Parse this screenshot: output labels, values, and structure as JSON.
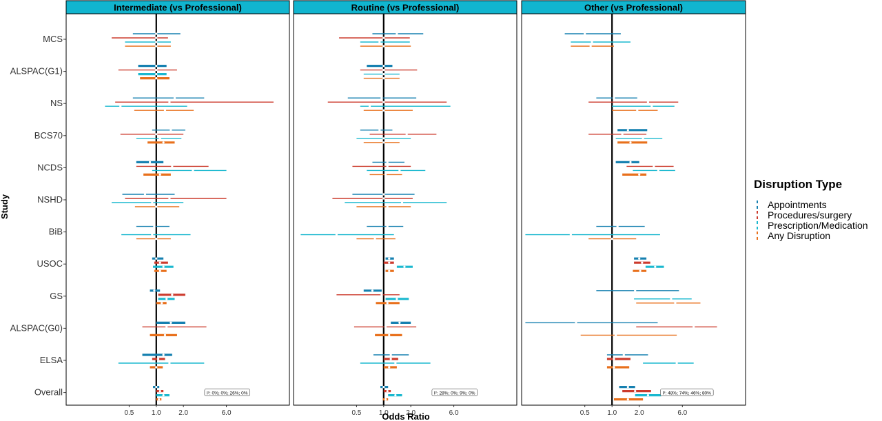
{
  "chart_data": {
    "type": "forest",
    "xlabel": "Odds Ratio",
    "ylabel": "Study",
    "x_scale": "log",
    "xlim": [
      0.1,
      30
    ],
    "xticks": [
      0.5,
      1.0,
      2.0,
      6.0
    ],
    "xtick_labels": [
      "0.5",
      "1.0",
      "2.0",
      "6.0"
    ],
    "reference_line": 1.0,
    "studies": [
      "MCS",
      "ALSPAC(G1)",
      "NS",
      "BCS70",
      "NCDS",
      "NSHD",
      "BiB",
      "USOC",
      "GS",
      "ALSPAC(G0)",
      "ELSA",
      "Overall"
    ],
    "legend": {
      "title": "Disruption Type",
      "position": "right",
      "entries": [
        {
          "name": "Appointments",
          "color": "#1680b0"
        },
        {
          "name": "Procedures/surgery",
          "color": "#cc3a2c"
        },
        {
          "name": "Prescription/Medication",
          "color": "#1ab8cf"
        },
        {
          "name": "Any Disruption",
          "color": "#e8701c"
        }
      ]
    },
    "panels": [
      {
        "title": "Intermediate (vs Professional)",
        "overall_note": "I²: 0%; 0%; 26%; 0%",
        "estimates": {
          "MCS": [
            [
              1.0,
              0.55,
              1.85
            ],
            [
              1.0,
              0.32,
              1.35
            ],
            [
              1.0,
              0.45,
              1.45
            ],
            [
              1.0,
              0.45,
              1.45
            ]
          ],
          "ALSPAC(G1)": [
            [
              1.0,
              0.63,
              1.3
            ],
            [
              1.0,
              0.38,
              1.7
            ],
            [
              1.0,
              0.63,
              1.3
            ],
            [
              1.0,
              0.66,
              1.4
            ]
          ],
          "NS": [
            [
              1.6,
              0.55,
              3.4
            ],
            [
              1.4,
              0.35,
              20.0
            ],
            [
              0.4,
              0.27,
              2.2
            ],
            [
              1.25,
              0.57,
              2.6
            ]
          ],
          "BCS70": [
            [
              1.45,
              0.9,
              2.1
            ],
            [
              1.0,
              0.4,
              2.0
            ],
            [
              1.1,
              0.6,
              1.9
            ],
            [
              1.2,
              0.8,
              1.6
            ]
          ],
          "NCDS": [
            [
              0.85,
              0.6,
              1.2
            ],
            [
              1.5,
              0.6,
              3.8
            ],
            [
              2.55,
              0.9,
              6.0
            ],
            [
              1.1,
              0.72,
              1.45
            ]
          ],
          "NSHD": [
            [
              0.75,
              0.42,
              1.6
            ],
            [
              1.4,
              0.45,
              6.0
            ],
            [
              0.9,
              0.32,
              2.0
            ],
            [
              1.0,
              0.58,
              1.8
            ]
          ],
          "BiB": [
            [
              0.95,
              0.6,
              1.4
            ],
            [
              null,
              null,
              null
            ],
            [
              0.9,
              0.41,
              2.4
            ],
            [
              1.0,
              0.6,
              1.45
            ]
          ],
          "USOC": [
            [
              1.0,
              0.9,
              1.2
            ],
            [
              1.1,
              0.95,
              1.35
            ],
            [
              1.2,
              0.92,
              1.55
            ],
            [
              1.1,
              0.95,
              1.3
            ]
          ],
          "GS": [
            [
              0.95,
              0.85,
              1.1
            ],
            [
              1.5,
              1.05,
              2.1
            ],
            [
              1.3,
              1.05,
              1.6
            ],
            [
              1.15,
              1.0,
              1.3
            ]
          ],
          "ALSPAC(G0)": [
            [
              1.45,
              1.0,
              2.1
            ],
            [
              1.3,
              0.7,
              3.6
            ],
            [
              null,
              null,
              null
            ],
            [
              1.25,
              0.85,
              1.7
            ]
          ],
          "ELSA": [
            [
              1.2,
              0.7,
              1.5
            ],
            [
              1.05,
              0.9,
              1.25
            ],
            [
              1.4,
              0.38,
              3.4
            ],
            [
              1.0,
              0.85,
              1.18
            ]
          ],
          "Overall": [
            [
              1.0,
              0.92,
              1.08
            ],
            [
              1.1,
              1.0,
              1.2
            ],
            [
              1.2,
              1.0,
              1.4
            ],
            [
              1.07,
              1.0,
              1.14
            ]
          ]
        }
      },
      {
        "title": "Routine (vs Professional)",
        "overall_note": "I²: 28%; 0%; 9%; 0%",
        "estimates": {
          "MCS": [
            [
              1.4,
              0.75,
              2.75
            ],
            [
              1.0,
              0.32,
              1.95
            ],
            [
              0.9,
              0.55,
              1.95
            ],
            [
              1.0,
              0.55,
              2.0
            ]
          ],
          "ALSPAC(G1)": [
            [
              1.0,
              0.65,
              1.25
            ],
            [
              1.0,
              0.55,
              2.35
            ],
            [
              1.0,
              0.6,
              1.5
            ],
            [
              1.0,
              0.6,
              1.5
            ]
          ],
          "NS": [
            [
              0.95,
              0.4,
              2.3
            ],
            [
              1.0,
              0.24,
              5.0
            ],
            [
              0.7,
              0.55,
              5.5
            ],
            [
              1.0,
              0.6,
              2.1
            ]
          ],
          "BCS70": [
            [
              0.9,
              0.55,
              1.25
            ],
            [
              1.8,
              0.7,
              3.85
            ],
            [
              1.0,
              0.5,
              2.0
            ],
            [
              1.0,
              0.6,
              1.5
            ]
          ],
          "NCDS": [
            [
              1.1,
              0.75,
              1.7
            ],
            [
              1.1,
              0.45,
              2.0
            ],
            [
              1.5,
              0.65,
              2.9
            ],
            [
              1.05,
              0.7,
              1.6
            ]
          ],
          "NSHD": [
            [
              1.0,
              0.45,
              2.2
            ],
            [
              1.0,
              0.27,
              2.1
            ],
            [
              1.6,
              0.37,
              5.0
            ],
            [
              1.1,
              0.5,
              2.0
            ]
          ],
          "BiB": [
            [
              1.1,
              0.65,
              1.65
            ],
            [
              null,
              null,
              null
            ],
            [
              0.3,
              0.12,
              1.3
            ],
            [
              0.8,
              0.5,
              1.35
            ]
          ],
          "USOC": [
            [
              1.15,
              1.05,
              1.3
            ],
            [
              1.15,
              1.0,
              1.3
            ],
            [
              1.7,
              1.4,
              2.1
            ],
            [
              1.15,
              1.05,
              1.3
            ]
          ],
          "GS": [
            [
              0.75,
              0.6,
              0.95
            ],
            [
              0.95,
              0.3,
              1.5
            ],
            [
              1.4,
              1.05,
              1.9
            ],
            [
              1.1,
              0.82,
              1.5
            ]
          ],
          "ALSPAC(G0)": [
            [
              1.5,
              1.2,
              2.0
            ],
            [
              1.05,
              0.47,
              2.3
            ],
            [
              null,
              null,
              null
            ],
            [
              1.15,
              0.8,
              1.6
            ]
          ],
          "ELSA": [
            [
              1.2,
              0.77,
              1.9
            ],
            [
              1.2,
              1.0,
              1.45
            ],
            [
              1.35,
              0.55,
              3.3
            ],
            [
              1.15,
              1.0,
              1.4
            ]
          ],
          "Overall": [
            [
              1.0,
              0.92,
              1.12
            ],
            [
              1.1,
              1.0,
              1.2
            ],
            [
              1.35,
              1.12,
              1.6
            ],
            [
              1.05,
              0.98,
              1.12
            ]
          ]
        }
      },
      {
        "title": "Other (vs Professional)",
        "overall_note": "I²: 48%; 74%; 46%; 80%",
        "estimates": {
          "MCS": [
            [
              0.5,
              0.3,
              1.25
            ],
            [
              null,
              null,
              null
            ],
            [
              0.6,
              0.35,
              1.6
            ],
            [
              0.58,
              0.35,
              1.05
            ]
          ],
          "ALSPAC(G1)": [
            [
              null,
              null,
              null
            ],
            [
              null,
              null,
              null
            ],
            [
              null,
              null,
              null
            ],
            [
              null,
              null,
              null
            ]
          ],
          "NS": [
            [
              1.05,
              0.67,
              1.9
            ],
            [
              2.5,
              0.55,
              5.4
            ],
            [
              2.75,
              1.0,
              4.9
            ],
            [
              1.9,
              1.0,
              3.2
            ]
          ],
          "BCS70": [
            [
              1.5,
              1.15,
              2.45
            ],
            [
              1.3,
              0.55,
              2.4
            ],
            [
              2.2,
              1.1,
              3.6
            ],
            [
              1.6,
              1.15,
              2.45
            ]
          ],
          "NCDS": [
            [
              1.6,
              1.1,
              2.0
            ],
            [
              2.9,
              1.45,
              4.8
            ],
            [
              3.25,
              1.7,
              5.0
            ],
            [
              2.0,
              1.3,
              2.4
            ]
          ],
          "NSHD": [
            [
              null,
              null,
              null
            ],
            [
              null,
              null,
              null
            ],
            [
              null,
              null,
              null
            ],
            [
              null,
              null,
              null
            ]
          ],
          "BiB": [
            [
              1.15,
              0.67,
              2.3
            ],
            [
              null,
              null,
              null
            ],
            [
              0.35,
              0.11,
              3.4
            ],
            [
              1.0,
              0.55,
              1.85
            ]
          ],
          "USOC": [
            [
              2.0,
              1.75,
              2.4
            ],
            [
              2.15,
              1.75,
              2.65
            ],
            [
              3.0,
              2.35,
              3.75
            ],
            [
              2.05,
              1.7,
              2.4
            ]
          ],
          "GS": [
            [
              1.8,
              0.67,
              5.5
            ],
            [
              null,
              null,
              null
            ],
            [
              4.5,
              1.75,
              7.6
            ],
            [
              5.0,
              1.85,
              9.5
            ]
          ],
          "ALSPAC(G0)": [
            [
              0.4,
              0.11,
              3.2
            ],
            [
              8.0,
              1.85,
              14.5
            ],
            [
              null,
              null,
              null
            ],
            [
              1.1,
              0.45,
              5.2
            ]
          ],
          "ELSA": [
            [
              1.35,
              0.88,
              2.5
            ],
            [
              1.05,
              0.88,
              1.6
            ],
            [
              5.2,
              2.2,
              8.0
            ],
            [
              1.05,
              0.88,
              1.55
            ]
          ],
          "Overall": [
            [
              1.5,
              1.2,
              1.8
            ],
            [
              1.8,
              1.3,
              2.7
            ],
            [
              2.5,
              1.8,
              3.5
            ],
            [
              1.5,
              1.05,
              2.2
            ]
          ]
        }
      }
    ]
  }
}
